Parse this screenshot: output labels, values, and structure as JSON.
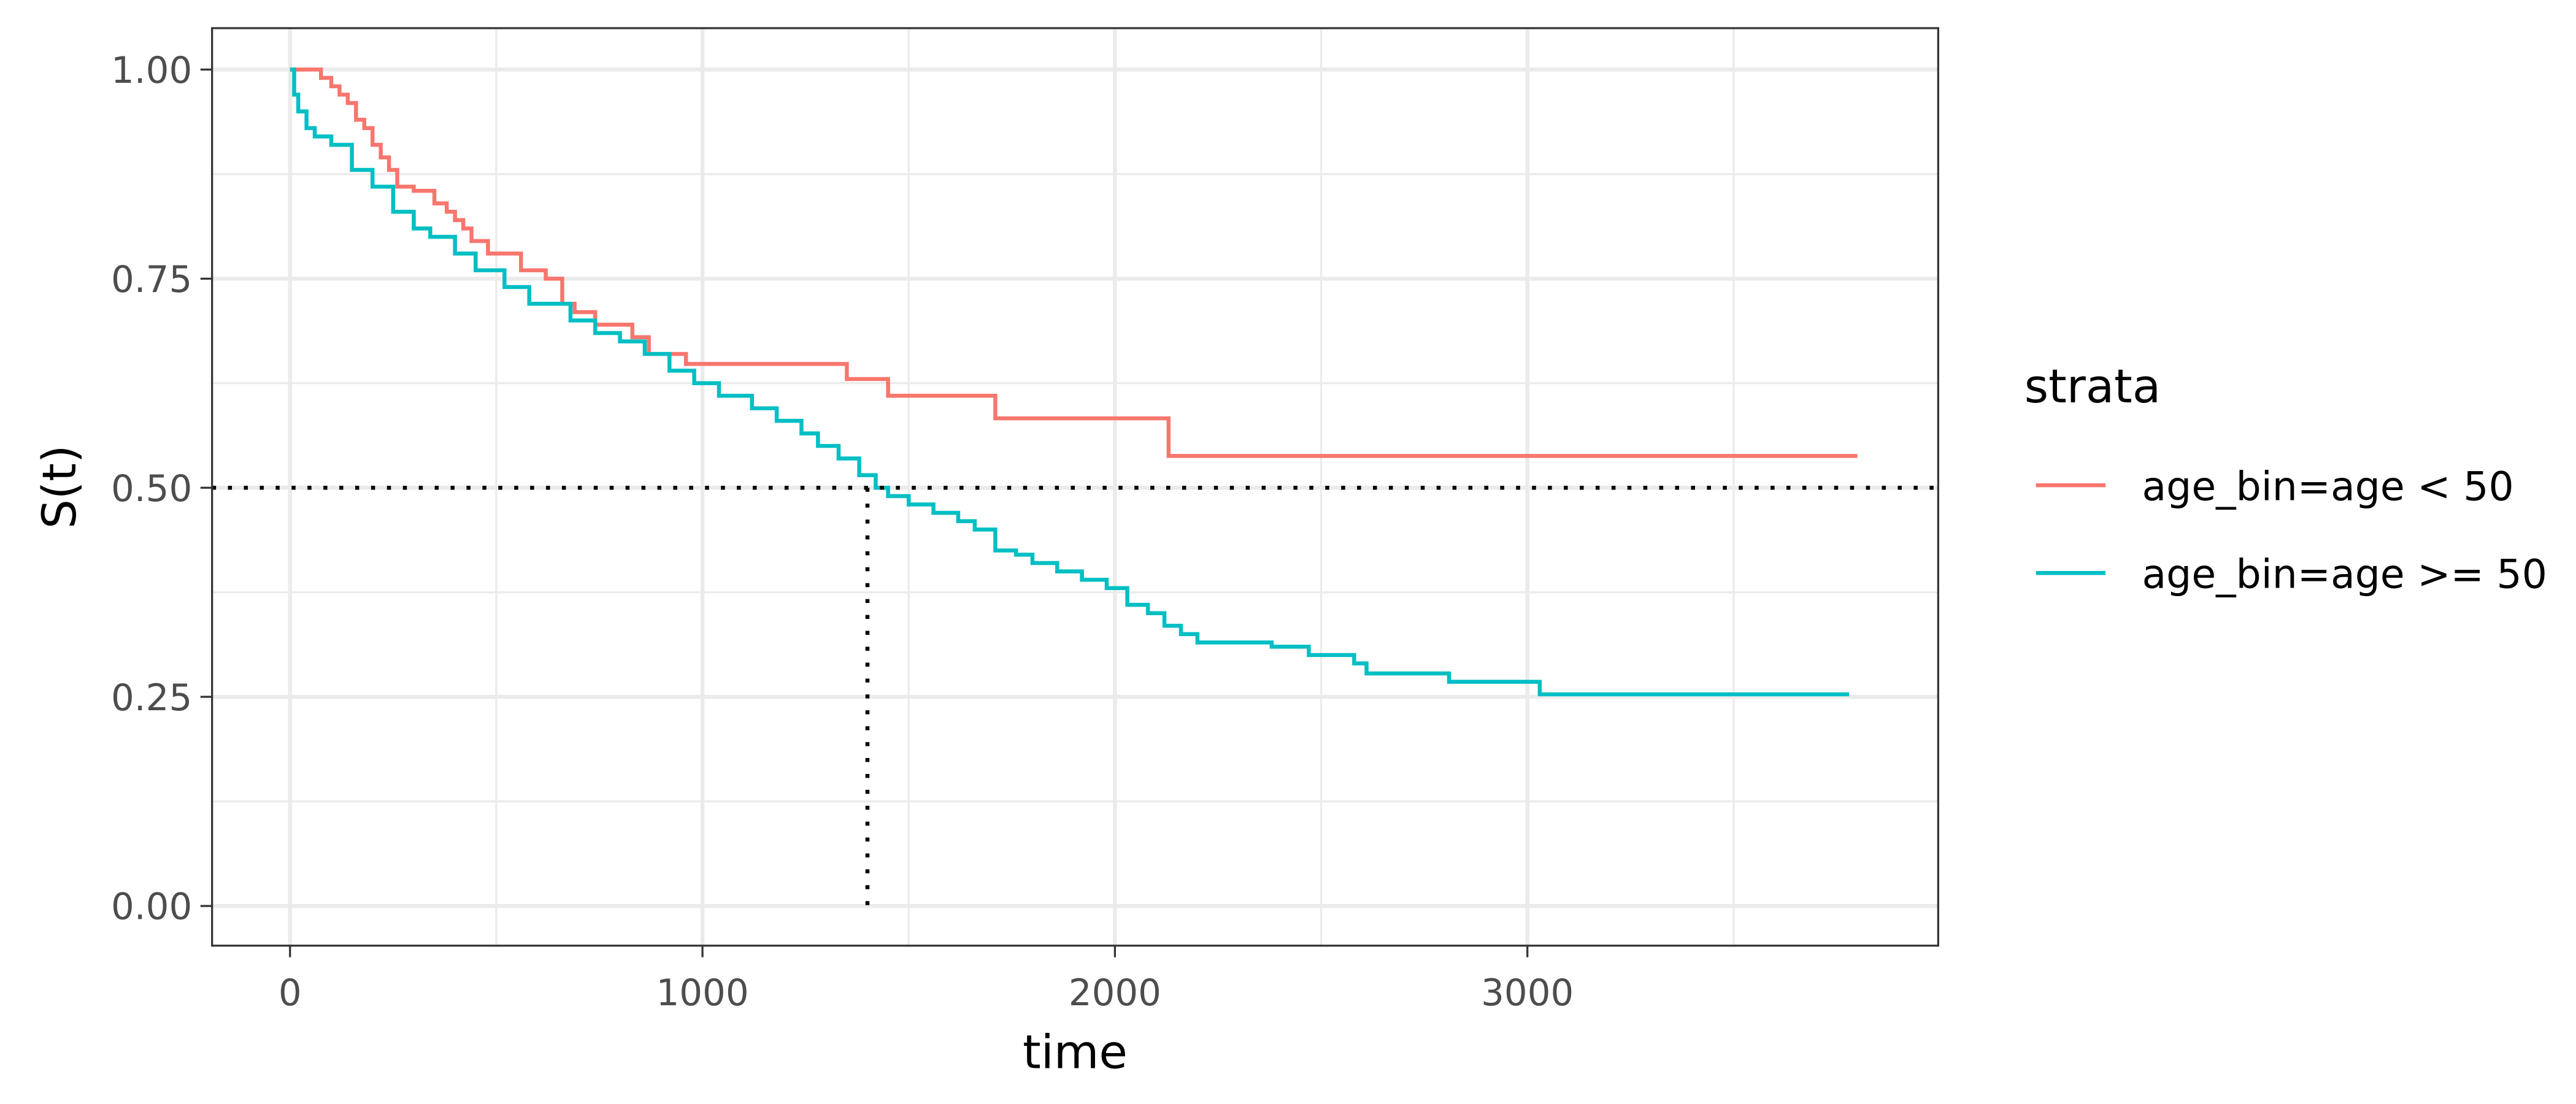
{
  "chart_data": {
    "type": "step",
    "x_label": "time",
    "y_label": "S(t)",
    "xlim": [
      -189,
      3996
    ],
    "ylim": [
      -0.0475,
      1.0495
    ],
    "xticks": [
      0,
      1000,
      2000,
      3000
    ],
    "yticks": [
      {
        "value": 0,
        "label": "0.00"
      },
      {
        "value": 0.25,
        "label": "0.25"
      },
      {
        "value": 0.5,
        "label": "0.50"
      },
      {
        "value": 0.75,
        "label": "0.75"
      },
      {
        "value": 1,
        "label": "1.00"
      }
    ],
    "x_minor_ticks": [
      500,
      1500,
      2500,
      3500
    ],
    "y_minor_ticks": [
      0.125,
      0.375,
      0.625,
      0.875
    ],
    "grid": true,
    "legend_title": "strata",
    "legend_position": "right",
    "median_line": {
      "x": 1400,
      "y": 0.5
    },
    "series": [
      {
        "name": "age_bin=age < 50",
        "color": "#f8766d",
        "x": [
          0,
          75,
          100,
          120,
          140,
          160,
          180,
          200,
          220,
          240,
          260,
          300,
          350,
          380,
          400,
          420,
          440,
          480,
          560,
          620,
          660,
          690,
          740,
          830,
          870,
          960,
          1350,
          1450,
          1710,
          2130,
          3800
        ],
        "values": [
          1,
          0.99,
          0.98,
          0.97,
          0.96,
          0.94,
          0.93,
          0.91,
          0.895,
          0.88,
          0.86,
          0.855,
          0.84,
          0.83,
          0.82,
          0.81,
          0.795,
          0.78,
          0.76,
          0.75,
          0.72,
          0.71,
          0.695,
          0.68,
          0.66,
          0.648,
          0.63,
          0.61,
          0.583,
          0.538,
          0.538
        ]
      },
      {
        "name": "age_bin=age >= 50",
        "color": "#00bfc4",
        "x": [
          0,
          10,
          20,
          40,
          60,
          100,
          150,
          200,
          250,
          300,
          340,
          400,
          450,
          520,
          580,
          680,
          740,
          800,
          860,
          920,
          980,
          1040,
          1120,
          1180,
          1240,
          1280,
          1330,
          1380,
          1420,
          1450,
          1500,
          1560,
          1620,
          1660,
          1710,
          1760,
          1800,
          1860,
          1920,
          1980,
          2030,
          2080,
          2120,
          2160,
          2200,
          2380,
          2470,
          2580,
          2610,
          2810,
          3030,
          3780
        ],
        "values": [
          1,
          0.97,
          0.95,
          0.93,
          0.92,
          0.91,
          0.88,
          0.86,
          0.83,
          0.81,
          0.8,
          0.78,
          0.76,
          0.74,
          0.72,
          0.7,
          0.685,
          0.675,
          0.66,
          0.64,
          0.625,
          0.61,
          0.595,
          0.58,
          0.565,
          0.55,
          0.535,
          0.515,
          0.5,
          0.49,
          0.48,
          0.47,
          0.46,
          0.45,
          0.425,
          0.42,
          0.41,
          0.4,
          0.39,
          0.38,
          0.36,
          0.35,
          0.335,
          0.325,
          0.315,
          0.31,
          0.3,
          0.29,
          0.278,
          0.268,
          0.253,
          0.253
        ]
      }
    ]
  }
}
